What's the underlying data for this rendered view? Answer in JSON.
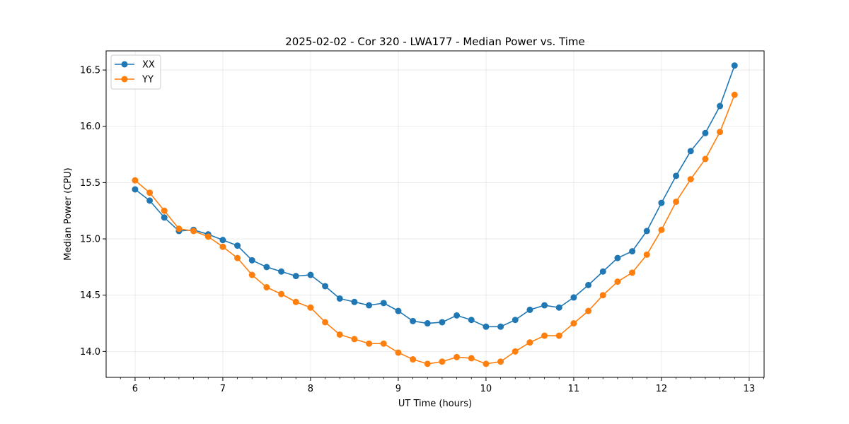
{
  "chart_data": {
    "type": "line",
    "title": "2025-02-02 - Cor 320 - LWA177 - Median Power vs. Time",
    "xlabel": "UT Time (hours)",
    "ylabel": "Median Power (CPU)",
    "xlim": [
      5.67,
      13.17
    ],
    "ylim": [
      13.77,
      16.67
    ],
    "xticks": [
      6,
      7,
      8,
      9,
      10,
      11,
      12,
      13
    ],
    "xtick_labels": [
      "6",
      "7",
      "8",
      "9",
      "10",
      "11",
      "12",
      "13"
    ],
    "yticks": [
      14.0,
      14.5,
      15.0,
      15.5,
      16.0,
      16.5
    ],
    "ytick_labels": [
      "14.0",
      "14.5",
      "15.0",
      "15.5",
      "16.0",
      "16.5"
    ],
    "grid": true,
    "legend_position": "top-left",
    "x": [
      6.0,
      6.1667,
      6.3333,
      6.5,
      6.6667,
      6.8333,
      7.0,
      7.1667,
      7.3333,
      7.5,
      7.6667,
      7.8333,
      8.0,
      8.1667,
      8.3333,
      8.5,
      8.6667,
      8.8333,
      9.0,
      9.1667,
      9.3333,
      9.5,
      9.6667,
      9.8333,
      10.0,
      10.1667,
      10.3333,
      10.5,
      10.6667,
      10.8333,
      11.0,
      11.1667,
      11.3333,
      11.5,
      11.6667,
      11.8333,
      12.0,
      12.1667,
      12.3333,
      12.5,
      12.6667,
      12.8333
    ],
    "series": [
      {
        "name": "XX",
        "color": "#1f77b4",
        "values": [
          15.44,
          15.34,
          15.19,
          15.07,
          15.08,
          15.04,
          14.99,
          14.94,
          14.81,
          14.75,
          14.71,
          14.67,
          14.68,
          14.58,
          14.47,
          14.44,
          14.41,
          14.43,
          14.36,
          14.27,
          14.25,
          14.26,
          14.32,
          14.28,
          14.22,
          14.22,
          14.28,
          14.37,
          14.41,
          14.39,
          14.48,
          14.59,
          14.71,
          14.83,
          14.89,
          15.07,
          15.32,
          15.56,
          15.78,
          15.94,
          16.18,
          16.54
        ]
      },
      {
        "name": "YY",
        "color": "#ff7f0e",
        "values": [
          15.52,
          15.41,
          15.25,
          15.09,
          15.07,
          15.02,
          14.93,
          14.83,
          14.68,
          14.57,
          14.51,
          14.44,
          14.39,
          14.26,
          14.15,
          14.11,
          14.07,
          14.07,
          13.99,
          13.93,
          13.89,
          13.91,
          13.95,
          13.94,
          13.89,
          13.91,
          14.0,
          14.08,
          14.14,
          14.14,
          14.25,
          14.36,
          14.5,
          14.62,
          14.7,
          14.86,
          15.08,
          15.33,
          15.53,
          15.71,
          15.95,
          16.28
        ]
      }
    ]
  }
}
